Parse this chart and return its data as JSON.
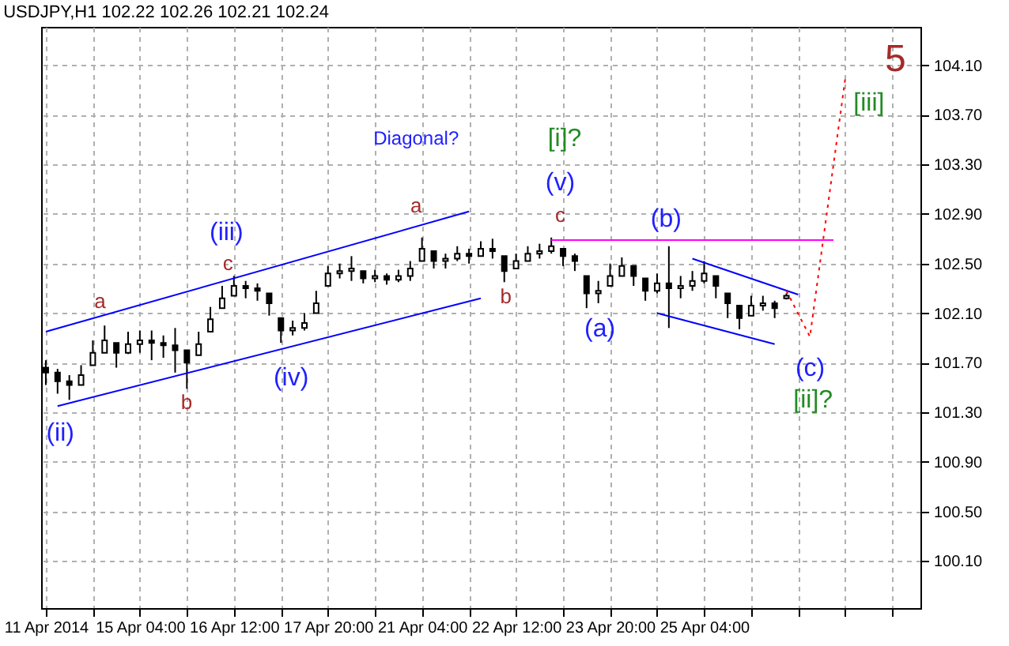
{
  "chart_data": {
    "type": "candlestick",
    "title": "USDJPY,H1  102.22 102.26 102.21 102.24",
    "categories": [
      "11 Apr 2014",
      null,
      null,
      null,
      null,
      null,
      null,
      null,
      "15 Apr 04:00",
      null,
      null,
      null,
      null,
      null,
      null,
      null,
      "16 Apr 12:00",
      null,
      null,
      null,
      null,
      null,
      null,
      null,
      "17 Apr 20:00",
      null,
      null,
      null,
      null,
      null,
      null,
      null,
      "21 Apr 04:00",
      null,
      null,
      null,
      null,
      null,
      null,
      null,
      "22 Apr 12:00",
      null,
      null,
      null,
      null,
      null,
      null,
      null,
      "23 Apr 20:00",
      null,
      null,
      null,
      null,
      null,
      null,
      null,
      "25 Apr 04:00",
      null,
      null,
      null,
      null,
      null,
      null,
      null,
      null,
      null,
      null,
      null,
      null,
      null,
      null,
      null,
      null,
      null,
      null
    ],
    "ylim": [
      99.72,
      104.41
    ],
    "yticks": [
      {
        "value": 100.1,
        "label": "100.10"
      },
      {
        "value": 100.5,
        "label": "100.50"
      },
      {
        "value": 100.9,
        "label": "100.90"
      },
      {
        "value": 101.3,
        "label": "101.30"
      },
      {
        "value": 101.7,
        "label": "101.70"
      },
      {
        "value": 102.1,
        "label": "102.10"
      },
      {
        "value": 102.5,
        "label": "102.50"
      },
      {
        "value": 102.9,
        "label": "102.90"
      },
      {
        "value": 103.3,
        "label": "103.30"
      },
      {
        "value": 103.7,
        "label": "103.70"
      },
      {
        "value": 104.1,
        "label": "104.10"
      }
    ],
    "grid": true,
    "series": [
      {
        "color": "#000000",
        "ohlc": [
          [
            101.66,
            101.72,
            101.52,
            101.62
          ],
          [
            101.62,
            101.65,
            101.45,
            101.55
          ],
          [
            101.55,
            101.6,
            101.4,
            101.52
          ],
          [
            101.52,
            101.68,
            101.52,
            101.6
          ],
          [
            101.68,
            101.88,
            101.68,
            101.78
          ],
          [
            101.78,
            102.0,
            101.78,
            101.88
          ],
          [
            101.86,
            101.86,
            101.66,
            101.78
          ],
          [
            101.78,
            101.95,
            101.77,
            101.85
          ],
          [
            101.85,
            101.96,
            101.78,
            101.88
          ],
          [
            101.88,
            101.96,
            101.72,
            101.86
          ],
          [
            101.86,
            101.92,
            101.74,
            101.84
          ],
          [
            101.84,
            101.98,
            101.62,
            101.8
          ],
          [
            101.8,
            101.8,
            101.49,
            101.7
          ],
          [
            101.76,
            101.95,
            101.76,
            101.85
          ],
          [
            101.95,
            102.15,
            101.95,
            102.05
          ],
          [
            102.14,
            102.32,
            102.14,
            102.22
          ],
          [
            102.24,
            102.4,
            102.24,
            102.32
          ],
          [
            102.32,
            102.36,
            102.22,
            102.3
          ],
          [
            102.3,
            102.34,
            102.2,
            102.28
          ],
          [
            102.26,
            102.26,
            102.08,
            102.18
          ],
          [
            102.06,
            102.06,
            101.86,
            101.96
          ],
          [
            101.96,
            102.04,
            101.92,
            101.98
          ],
          [
            101.98,
            102.1,
            101.96,
            102.02
          ],
          [
            102.1,
            102.28,
            102.1,
            102.18
          ],
          [
            102.32,
            102.48,
            102.32,
            102.42
          ],
          [
            102.42,
            102.5,
            102.38,
            102.44
          ],
          [
            102.44,
            102.56,
            102.36,
            102.46
          ],
          [
            102.44,
            102.44,
            102.34,
            102.38
          ],
          [
            102.38,
            102.45,
            102.35,
            102.4
          ],
          [
            102.4,
            102.42,
            102.33,
            102.37
          ],
          [
            102.37,
            102.45,
            102.35,
            102.4
          ],
          [
            102.4,
            102.52,
            102.36,
            102.46
          ],
          [
            102.52,
            102.71,
            102.52,
            102.62
          ],
          [
            102.6,
            102.6,
            102.46,
            102.52
          ],
          [
            102.52,
            102.58,
            102.46,
            102.54
          ],
          [
            102.54,
            102.64,
            102.52,
            102.58
          ],
          [
            102.58,
            102.62,
            102.5,
            102.56
          ],
          [
            102.56,
            102.68,
            102.56,
            102.62
          ],
          [
            102.62,
            102.7,
            102.54,
            102.6
          ],
          [
            102.56,
            102.56,
            102.35,
            102.44
          ],
          [
            102.46,
            102.58,
            102.46,
            102.52
          ],
          [
            102.52,
            102.64,
            102.52,
            102.58
          ],
          [
            102.58,
            102.66,
            102.54,
            102.6
          ],
          [
            102.6,
            102.71,
            102.58,
            102.64
          ],
          [
            102.62,
            102.62,
            102.48,
            102.56
          ],
          [
            102.56,
            102.58,
            102.44,
            102.52
          ],
          [
            102.4,
            102.4,
            102.14,
            102.26
          ],
          [
            102.26,
            102.36,
            102.18,
            102.28
          ],
          [
            102.32,
            102.5,
            102.32,
            102.4
          ],
          [
            102.4,
            102.55,
            102.4,
            102.48
          ],
          [
            102.48,
            102.48,
            102.32,
            102.4
          ],
          [
            102.38,
            102.38,
            102.2,
            102.28
          ],
          [
            102.28,
            102.42,
            102.26,
            102.34
          ],
          [
            102.34,
            102.64,
            101.98,
            102.3
          ],
          [
            102.3,
            102.4,
            102.22,
            102.32
          ],
          [
            102.32,
            102.44,
            102.28,
            102.36
          ],
          [
            102.36,
            102.52,
            102.34,
            102.42
          ],
          [
            102.4,
            102.4,
            102.22,
            102.32
          ],
          [
            102.26,
            102.26,
            102.06,
            102.18
          ],
          [
            102.16,
            102.16,
            101.97,
            102.06
          ],
          [
            102.08,
            102.24,
            102.08,
            102.16
          ],
          [
            102.16,
            102.24,
            102.12,
            102.18
          ],
          [
            102.18,
            102.2,
            102.06,
            102.14
          ],
          [
            102.22,
            102.26,
            102.21,
            102.24
          ],
          null,
          null,
          null,
          null,
          null,
          null,
          null,
          null,
          null,
          null,
          null
        ]
      },
      {
        "type": "line",
        "color": "#0000ff",
        "values": [
          101.95,
          null,
          null,
          null,
          null,
          null,
          null,
          null,
          null,
          null,
          null,
          null,
          null,
          null,
          null,
          null,
          null,
          null,
          null,
          null,
          null,
          null,
          null,
          null,
          null,
          null,
          null,
          null,
          null,
          null,
          null,
          null,
          null,
          null,
          null,
          null,
          102.92,
          null,
          null,
          null,
          null,
          null,
          null,
          null,
          null,
          null,
          null,
          null,
          null,
          null,
          null,
          null,
          null,
          null,
          null,
          null,
          null,
          null,
          null,
          null,
          null,
          null,
          null,
          null,
          null,
          null,
          null,
          null,
          null,
          null,
          null,
          null,
          null,
          null,
          null
        ]
      },
      {
        "type": "line",
        "color": "#0000ff",
        "values": [
          null,
          101.35,
          null,
          null,
          null,
          null,
          null,
          null,
          null,
          null,
          null,
          null,
          null,
          null,
          null,
          null,
          null,
          null,
          null,
          null,
          null,
          null,
          null,
          null,
          null,
          null,
          null,
          null,
          null,
          null,
          null,
          null,
          null,
          null,
          null,
          null,
          null,
          102.22,
          null,
          null,
          null,
          null,
          null,
          null,
          null,
          null,
          null,
          null,
          null,
          null,
          null,
          null,
          null,
          null,
          null,
          null,
          null,
          null,
          null,
          null,
          null,
          null,
          null,
          null,
          null,
          null,
          null,
          null,
          null,
          null,
          null,
          null,
          null,
          null,
          null
        ]
      },
      {
        "type": "line",
        "color": "#0000ff",
        "values": [
          null,
          null,
          null,
          null,
          null,
          null,
          null,
          null,
          null,
          null,
          null,
          null,
          null,
          null,
          null,
          null,
          null,
          null,
          null,
          null,
          null,
          null,
          null,
          null,
          null,
          null,
          null,
          null,
          null,
          null,
          null,
          null,
          null,
          null,
          null,
          null,
          null,
          null,
          null,
          null,
          null,
          null,
          null,
          null,
          null,
          null,
          null,
          null,
          null,
          null,
          null,
          null,
          null,
          null,
          null,
          102.54,
          null,
          null,
          null,
          null,
          null,
          null,
          null,
          null,
          102.25,
          null,
          null,
          null,
          null,
          null,
          null,
          null,
          null,
          null,
          null
        ]
      },
      {
        "type": "line",
        "color": "#0000ff",
        "values": [
          null,
          null,
          null,
          null,
          null,
          null,
          null,
          null,
          null,
          null,
          null,
          null,
          null,
          null,
          null,
          null,
          null,
          null,
          null,
          null,
          null,
          null,
          null,
          null,
          null,
          null,
          null,
          null,
          null,
          null,
          null,
          null,
          null,
          null,
          null,
          null,
          null,
          null,
          null,
          null,
          null,
          null,
          null,
          null,
          null,
          null,
          null,
          null,
          null,
          null,
          null,
          null,
          102.1,
          null,
          null,
          null,
          null,
          null,
          null,
          null,
          null,
          null,
          101.85,
          null,
          null,
          null,
          null,
          null,
          null,
          null,
          null,
          null,
          null,
          null,
          null
        ]
      },
      {
        "type": "line",
        "color": "#ff00ff",
        "values": [
          null,
          null,
          null,
          null,
          null,
          null,
          null,
          null,
          null,
          null,
          null,
          null,
          null,
          null,
          null,
          null,
          null,
          null,
          null,
          null,
          null,
          null,
          null,
          null,
          null,
          null,
          null,
          null,
          null,
          null,
          null,
          null,
          null,
          null,
          null,
          null,
          null,
          null,
          null,
          null,
          null,
          null,
          null,
          102.69,
          null,
          null,
          null,
          null,
          null,
          null,
          null,
          null,
          null,
          null,
          null,
          null,
          null,
          null,
          null,
          null,
          null,
          null,
          null,
          null,
          null,
          null,
          null,
          102.69,
          null,
          null,
          null,
          null,
          null,
          null,
          null
        ]
      },
      {
        "type": "line",
        "color": "#ff0000",
        "line_style": "dotted",
        "values": [
          null,
          null,
          null,
          null,
          null,
          null,
          null,
          null,
          null,
          null,
          null,
          null,
          null,
          null,
          null,
          null,
          null,
          null,
          null,
          null,
          null,
          null,
          null,
          null,
          null,
          null,
          null,
          null,
          null,
          null,
          null,
          null,
          null,
          null,
          null,
          null,
          null,
          null,
          null,
          null,
          null,
          null,
          null,
          null,
          null,
          null,
          null,
          null,
          null,
          null,
          null,
          null,
          null,
          null,
          null,
          null,
          null,
          null,
          null,
          null,
          null,
          null,
          null,
          102.28,
          null,
          101.91,
          null,
          null,
          103.99,
          null,
          null,
          null,
          null,
          null,
          null
        ]
      }
    ],
    "annotations": [
      "a",
      "b",
      "c",
      "(ii)",
      "(iii)",
      "(iv)",
      "a",
      "b",
      "c",
      "(v)",
      "[i]?",
      "(a)",
      "(b)",
      "(c)",
      "[ii]?",
      "[iii]",
      "5",
      "Diagonal?"
    ]
  }
}
